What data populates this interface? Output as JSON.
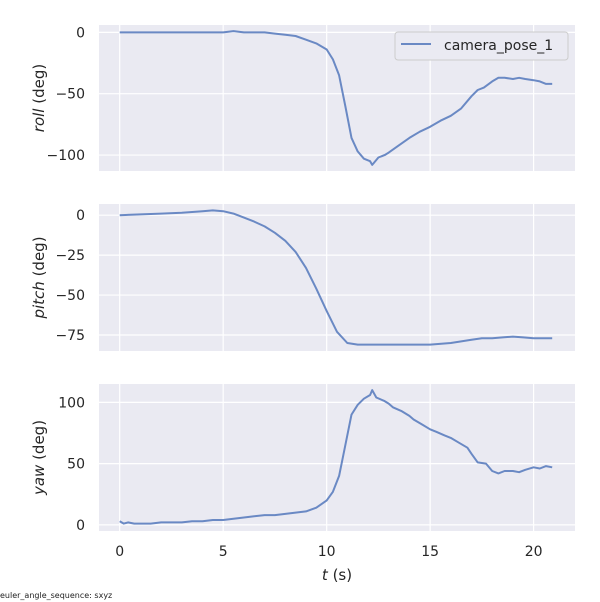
{
  "figure": {
    "footer_note": "euler_angle_sequence: sxyz",
    "line_color": "#6a89c4",
    "panel_bg": "#eaeaf2",
    "grid_color": "#ffffff"
  },
  "chart_data": [
    {
      "type": "line",
      "panel": "roll",
      "ylabel_italic": "roll",
      "ylabel_unit": " (deg)",
      "xlabel": "",
      "ylim": [
        -113,
        6
      ],
      "yticks": [
        0,
        -50,
        -100
      ],
      "ytick_labels": [
        "0",
        "−50",
        "−100"
      ],
      "xlim": [
        -1,
        22
      ],
      "xticks": [
        0,
        5,
        10,
        15,
        20
      ],
      "legend": {
        "label": "camera_pose_1",
        "position": "upper right"
      },
      "series": [
        {
          "name": "camera_pose_1",
          "x": [
            0,
            0.5,
            1,
            1.5,
            2,
            2.5,
            3,
            3.5,
            4,
            4.5,
            5,
            5.5,
            6,
            6.5,
            7,
            7.5,
            8,
            8.5,
            9,
            9.5,
            10,
            10.3,
            10.6,
            10.9,
            11.2,
            11.5,
            11.8,
            12.1,
            12.2,
            12.5,
            12.8,
            13,
            13.5,
            14,
            14.5,
            15,
            15.5,
            16,
            16.5,
            17,
            17.3,
            17.6,
            18,
            18.3,
            18.6,
            19,
            19.3,
            19.6,
            20,
            20.3,
            20.6,
            20.9
          ],
          "values": [
            0,
            0,
            0,
            0,
            0,
            0,
            0,
            0,
            0,
            0,
            0,
            1,
            0,
            0,
            0,
            -1,
            -2,
            -3,
            -6,
            -9,
            -14,
            -22,
            -35,
            -60,
            -86,
            -97,
            -103,
            -105,
            -108,
            -102,
            -100,
            -98,
            -92,
            -86,
            -81,
            -77,
            -72,
            -68,
            -62,
            -52,
            -47,
            -45,
            -40,
            -37,
            -37,
            -38,
            -37,
            -38,
            -39,
            -40,
            -42,
            -42
          ]
        }
      ]
    },
    {
      "type": "line",
      "panel": "pitch",
      "ylabel_italic": "pitch",
      "ylabel_unit": " (deg)",
      "xlabel": "",
      "ylim": [
        -85,
        7
      ],
      "yticks": [
        0,
        -25,
        -50,
        -75
      ],
      "ytick_labels": [
        "0",
        "−25",
        "−50",
        "−75"
      ],
      "xlim": [
        -1,
        22
      ],
      "xticks": [
        0,
        5,
        10,
        15,
        20
      ],
      "series": [
        {
          "name": "camera_pose_1",
          "x": [
            0,
            1,
            2,
            3,
            4,
            4.5,
            5,
            5.5,
            6,
            6.5,
            7,
            7.5,
            8,
            8.5,
            9,
            9.5,
            10,
            10.5,
            11,
            11.5,
            12,
            13,
            14,
            15,
            16,
            16.5,
            17,
            17.5,
            18,
            18.5,
            19,
            19.5,
            20,
            20.9
          ],
          "values": [
            0,
            0.5,
            1,
            1.5,
            2.5,
            3,
            2.5,
            1,
            -1.5,
            -4,
            -7,
            -11,
            -16,
            -23,
            -33,
            -46,
            -60,
            -73,
            -80,
            -81,
            -81,
            -81,
            -81,
            -81,
            -80,
            -79,
            -78,
            -77,
            -77,
            -76.5,
            -76,
            -76.5,
            -77,
            -77
          ]
        }
      ]
    },
    {
      "type": "line",
      "panel": "yaw",
      "ylabel_italic": "yaw",
      "ylabel_unit": " (deg)",
      "xlabel": "t (s)",
      "xlabel_italic": "t",
      "xlabel_unit": " (s)",
      "ylim": [
        -5,
        115
      ],
      "yticks": [
        0,
        50,
        100
      ],
      "ytick_labels": [
        "0",
        "50",
        "100"
      ],
      "xlim": [
        -1,
        22
      ],
      "xticks": [
        0,
        5,
        10,
        15,
        20
      ],
      "xtick_labels": [
        "0",
        "5",
        "10",
        "15",
        "20"
      ],
      "series": [
        {
          "name": "camera_pose_1",
          "x": [
            0,
            0.2,
            0.4,
            0.7,
            1,
            1.5,
            2,
            2.5,
            3,
            3.5,
            4,
            4.5,
            5,
            5.5,
            6,
            6.5,
            7,
            7.5,
            8,
            8.5,
            9,
            9.5,
            10,
            10.3,
            10.6,
            10.9,
            11.2,
            11.5,
            11.8,
            12.1,
            12.2,
            12.4,
            12.8,
            13,
            13.2,
            13.6,
            14,
            14.2,
            14.6,
            15,
            15.3,
            15.7,
            16,
            16.4,
            16.8,
            17,
            17.3,
            17.7,
            18,
            18.3,
            18.6,
            19,
            19.3,
            19.6,
            20,
            20.3,
            20.6,
            20.9
          ],
          "values": [
            3,
            1,
            2,
            1,
            1,
            1,
            2,
            2,
            2,
            3,
            3,
            4,
            4,
            5,
            6,
            7,
            8,
            8,
            9,
            10,
            11,
            14,
            20,
            27,
            40,
            65,
            90,
            98,
            103,
            106,
            110,
            104,
            101,
            99,
            96,
            93,
            89,
            86,
            82,
            78,
            76,
            73,
            71,
            67,
            63,
            58,
            51,
            50,
            44,
            42,
            44,
            44,
            43,
            45,
            47,
            46,
            48,
            47
          ]
        }
      ]
    }
  ]
}
